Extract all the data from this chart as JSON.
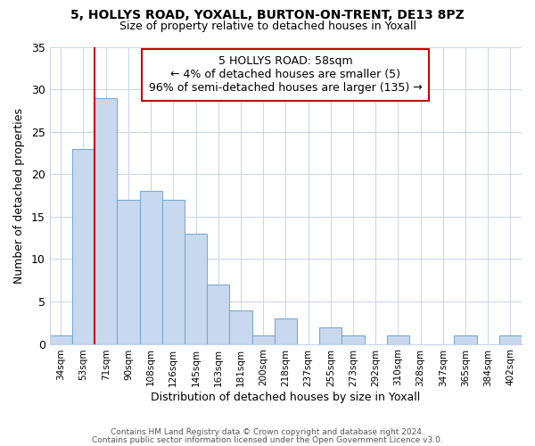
{
  "title": "5, HOLLYS ROAD, YOXALL, BURTON-ON-TRENT, DE13 8PZ",
  "subtitle": "Size of property relative to detached houses in Yoxall",
  "xlabel": "Distribution of detached houses by size in Yoxall",
  "ylabel": "Number of detached properties",
  "bar_labels": [
    "34sqm",
    "53sqm",
    "71sqm",
    "90sqm",
    "108sqm",
    "126sqm",
    "145sqm",
    "163sqm",
    "181sqm",
    "200sqm",
    "218sqm",
    "237sqm",
    "255sqm",
    "273sqm",
    "292sqm",
    "310sqm",
    "328sqm",
    "347sqm",
    "365sqm",
    "384sqm",
    "402sqm"
  ],
  "bar_values": [
    1,
    23,
    29,
    17,
    18,
    17,
    13,
    7,
    4,
    1,
    3,
    0,
    2,
    1,
    0,
    1,
    0,
    0,
    1,
    0,
    1
  ],
  "bar_color": "#c8d8ee",
  "bar_edge_color": "#7aaad0",
  "highlight_line_color": "#cc0000",
  "ylim": [
    0,
    35
  ],
  "yticks": [
    0,
    5,
    10,
    15,
    20,
    25,
    30,
    35
  ],
  "annotation_title": "5 HOLLYS ROAD: 58sqm",
  "annotation_line1": "← 4% of detached houses are smaller (5)",
  "annotation_line2": "96% of semi-detached houses are larger (135) →",
  "annotation_box_color": "#ffffff",
  "annotation_box_edge_color": "#cc0000",
  "footer_line1": "Contains HM Land Registry data © Crown copyright and database right 2024.",
  "footer_line2": "Contains public sector information licensed under the Open Government Licence v3.0.",
  "background_color": "#ffffff",
  "title_fontsize": 10,
  "subtitle_fontsize": 9
}
